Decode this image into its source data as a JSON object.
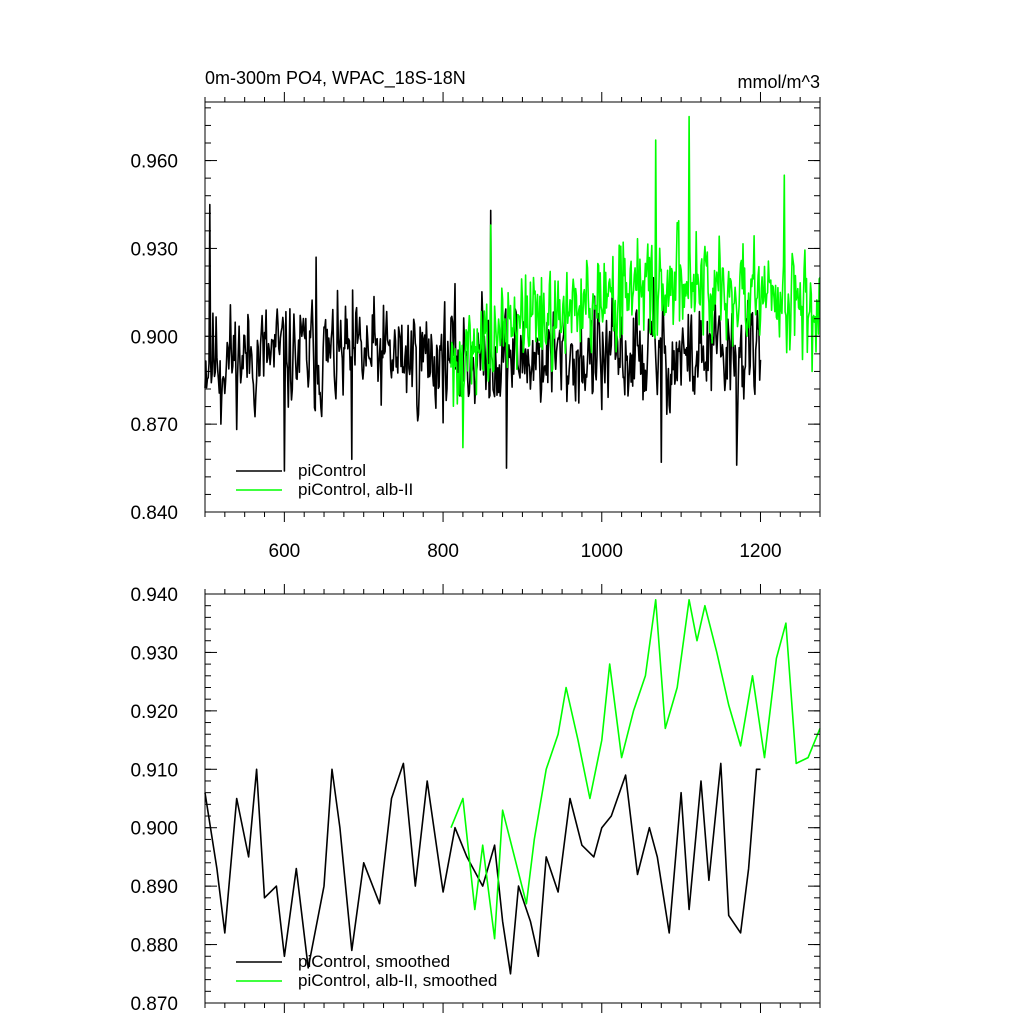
{
  "chart_data": [
    {
      "type": "line",
      "title": "0m-300m PO4, WPAC_18S-18N",
      "units": "mmol/m^3",
      "xlim": [
        500,
        1275
      ],
      "ylim": [
        0.84,
        0.98
      ],
      "xticks": [
        600,
        800,
        1000,
        1200
      ],
      "xtick_labels": [
        "600",
        "800",
        "1000",
        "1200"
      ],
      "yticks": [
        0.84,
        0.87,
        0.9,
        0.93,
        0.96
      ],
      "ytick_labels": [
        "0.840",
        "0.870",
        "0.900",
        "0.930",
        "0.960"
      ],
      "legend": {
        "position": "bottom-left",
        "entries": [
          "piControl",
          "piControl, alb-II"
        ]
      },
      "series": [
        {
          "name": "piControl",
          "color": "#000000",
          "x_range": [
            500,
            1200
          ],
          "mean": 0.893,
          "amplitude": 0.013,
          "min": 0.854,
          "max": 0.945,
          "seed": 11,
          "anchors": [
            [
              506,
              0.945
            ],
            [
              520,
              0.87
            ],
            [
              600,
              0.854
            ],
            [
              640,
              0.927
            ],
            [
              685,
              0.858
            ],
            [
              860,
              0.943
            ],
            [
              880,
              0.855
            ],
            [
              1000,
              0.875
            ],
            [
              1065,
              0.92
            ],
            [
              1075,
              0.857
            ],
            [
              1170,
              0.856
            ]
          ]
        },
        {
          "name": "piControl, alb-II",
          "color": "#00ff00",
          "x_range": [
            810,
            1275
          ],
          "trend": [
            [
              810,
              0.893
            ],
            [
              900,
              0.905
            ],
            [
              1000,
              0.913
            ],
            [
              1100,
              0.918
            ],
            [
              1275,
              0.912
            ]
          ],
          "amplitude": 0.013,
          "min": 0.862,
          "max": 0.975,
          "seed": 27,
          "anchors": [
            [
              825,
              0.862
            ],
            [
              860,
              0.938
            ],
            [
              1068,
              0.967
            ],
            [
              1110,
              0.975
            ],
            [
              1230,
              0.955
            ],
            [
              1265,
              0.888
            ]
          ]
        }
      ]
    },
    {
      "type": "line",
      "title": "",
      "xlim": [
        500,
        1275
      ],
      "ylim": [
        0.87,
        0.94
      ],
      "xticks": [
        600,
        800,
        1000,
        1200
      ],
      "xtick_labels": [],
      "yticks": [
        0.87,
        0.88,
        0.89,
        0.9,
        0.91,
        0.92,
        0.93,
        0.94
      ],
      "ytick_labels": [
        "0.870",
        "0.880",
        "0.890",
        "0.900",
        "0.910",
        "0.920",
        "0.930",
        "0.940"
      ],
      "legend": {
        "position": "bottom-left",
        "entries": [
          "piControl, smoothed",
          "piControl, alb-II, smoothed"
        ]
      },
      "series": [
        {
          "name": "piControl, smoothed",
          "color": "#000000",
          "x_range": [
            500,
            1200
          ],
          "points": [
            [
              500,
              0.906
            ],
            [
              515,
              0.893
            ],
            [
              525,
              0.882
            ],
            [
              540,
              0.905
            ],
            [
              555,
              0.895
            ],
            [
              565,
              0.91
            ],
            [
              575,
              0.888
            ],
            [
              590,
              0.89
            ],
            [
              600,
              0.878
            ],
            [
              615,
              0.893
            ],
            [
              630,
              0.876
            ],
            [
              650,
              0.89
            ],
            [
              660,
              0.91
            ],
            [
              670,
              0.9
            ],
            [
              685,
              0.879
            ],
            [
              700,
              0.894
            ],
            [
              720,
              0.887
            ],
            [
              735,
              0.905
            ],
            [
              750,
              0.911
            ],
            [
              765,
              0.89
            ],
            [
              780,
              0.908
            ],
            [
              800,
              0.889
            ],
            [
              815,
              0.9
            ],
            [
              830,
              0.895
            ],
            [
              850,
              0.89
            ],
            [
              865,
              0.897
            ],
            [
              875,
              0.884
            ],
            [
              885,
              0.875
            ],
            [
              895,
              0.89
            ],
            [
              910,
              0.884
            ],
            [
              920,
              0.878
            ],
            [
              930,
              0.895
            ],
            [
              945,
              0.889
            ],
            [
              960,
              0.905
            ],
            [
              975,
              0.897
            ],
            [
              990,
              0.895
            ],
            [
              1000,
              0.9
            ],
            [
              1012,
              0.902
            ],
            [
              1030,
              0.909
            ],
            [
              1045,
              0.892
            ],
            [
              1060,
              0.9
            ],
            [
              1070,
              0.895
            ],
            [
              1085,
              0.882
            ],
            [
              1100,
              0.906
            ],
            [
              1110,
              0.886
            ],
            [
              1125,
              0.908
            ],
            [
              1135,
              0.891
            ],
            [
              1150,
              0.911
            ],
            [
              1160,
              0.885
            ],
            [
              1175,
              0.882
            ],
            [
              1185,
              0.893
            ],
            [
              1195,
              0.91
            ],
            [
              1200,
              0.91
            ]
          ]
        },
        {
          "name": "piControl, alb-II, smoothed",
          "color": "#00ff00",
          "x_range": [
            810,
            1275
          ],
          "points": [
            [
              810,
              0.9
            ],
            [
              825,
              0.905
            ],
            [
              840,
              0.886
            ],
            [
              850,
              0.897
            ],
            [
              865,
              0.881
            ],
            [
              875,
              0.903
            ],
            [
              890,
              0.895
            ],
            [
              905,
              0.887
            ],
            [
              915,
              0.898
            ],
            [
              930,
              0.91
            ],
            [
              945,
              0.916
            ],
            [
              955,
              0.924
            ],
            [
              970,
              0.915
            ],
            [
              985,
              0.905
            ],
            [
              1000,
              0.915
            ],
            [
              1010,
              0.928
            ],
            [
              1025,
              0.912
            ],
            [
              1040,
              0.92
            ],
            [
              1055,
              0.926
            ],
            [
              1068,
              0.939
            ],
            [
              1080,
              0.917
            ],
            [
              1095,
              0.924
            ],
            [
              1110,
              0.939
            ],
            [
              1120,
              0.932
            ],
            [
              1130,
              0.938
            ],
            [
              1145,
              0.93
            ],
            [
              1160,
              0.921
            ],
            [
              1175,
              0.914
            ],
            [
              1190,
              0.926
            ],
            [
              1205,
              0.912
            ],
            [
              1220,
              0.929
            ],
            [
              1232,
              0.935
            ],
            [
              1245,
              0.911
            ],
            [
              1260,
              0.912
            ],
            [
              1275,
              0.917
            ]
          ]
        }
      ]
    }
  ]
}
